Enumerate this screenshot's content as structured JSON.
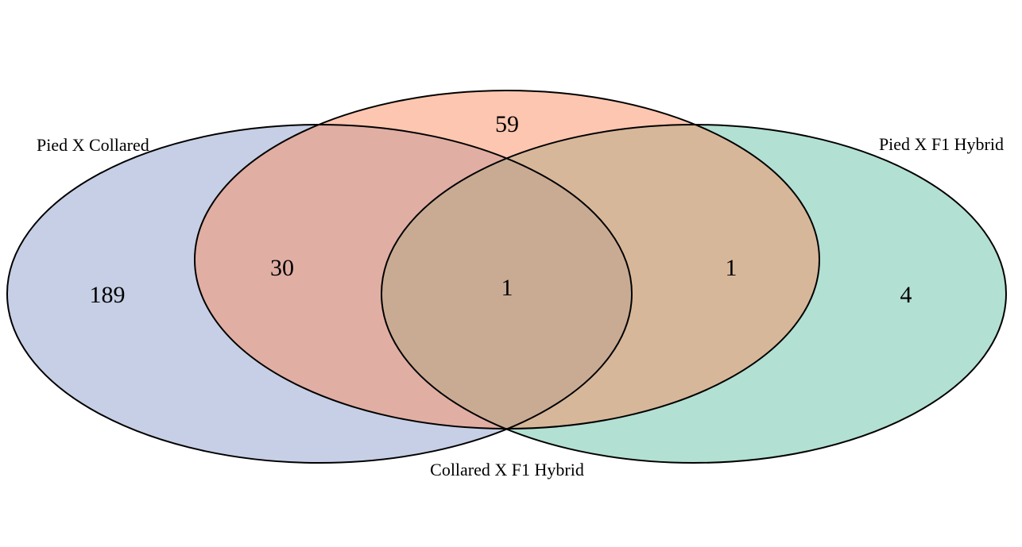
{
  "sets": [
    {
      "id": "A",
      "label": "Pied X Collared",
      "color": "#8da0cb"
    },
    {
      "id": "B",
      "label": "Collared X F1 Hybrid",
      "color": "#fc8d62"
    },
    {
      "id": "C",
      "label": "Pied X F1 Hybrid",
      "color": "#66c2a5"
    }
  ],
  "regions": {
    "only_pied_x_collared": "189",
    "only_collared_x_f1_hybrid": "59",
    "only_pied_x_f1_hybrid": "4",
    "pied_x_collared_and_collared_x_f1_hybrid": "30",
    "collared_x_f1_hybrid_and_pied_x_f1_hybrid": "1",
    "all_three": "1"
  }
}
